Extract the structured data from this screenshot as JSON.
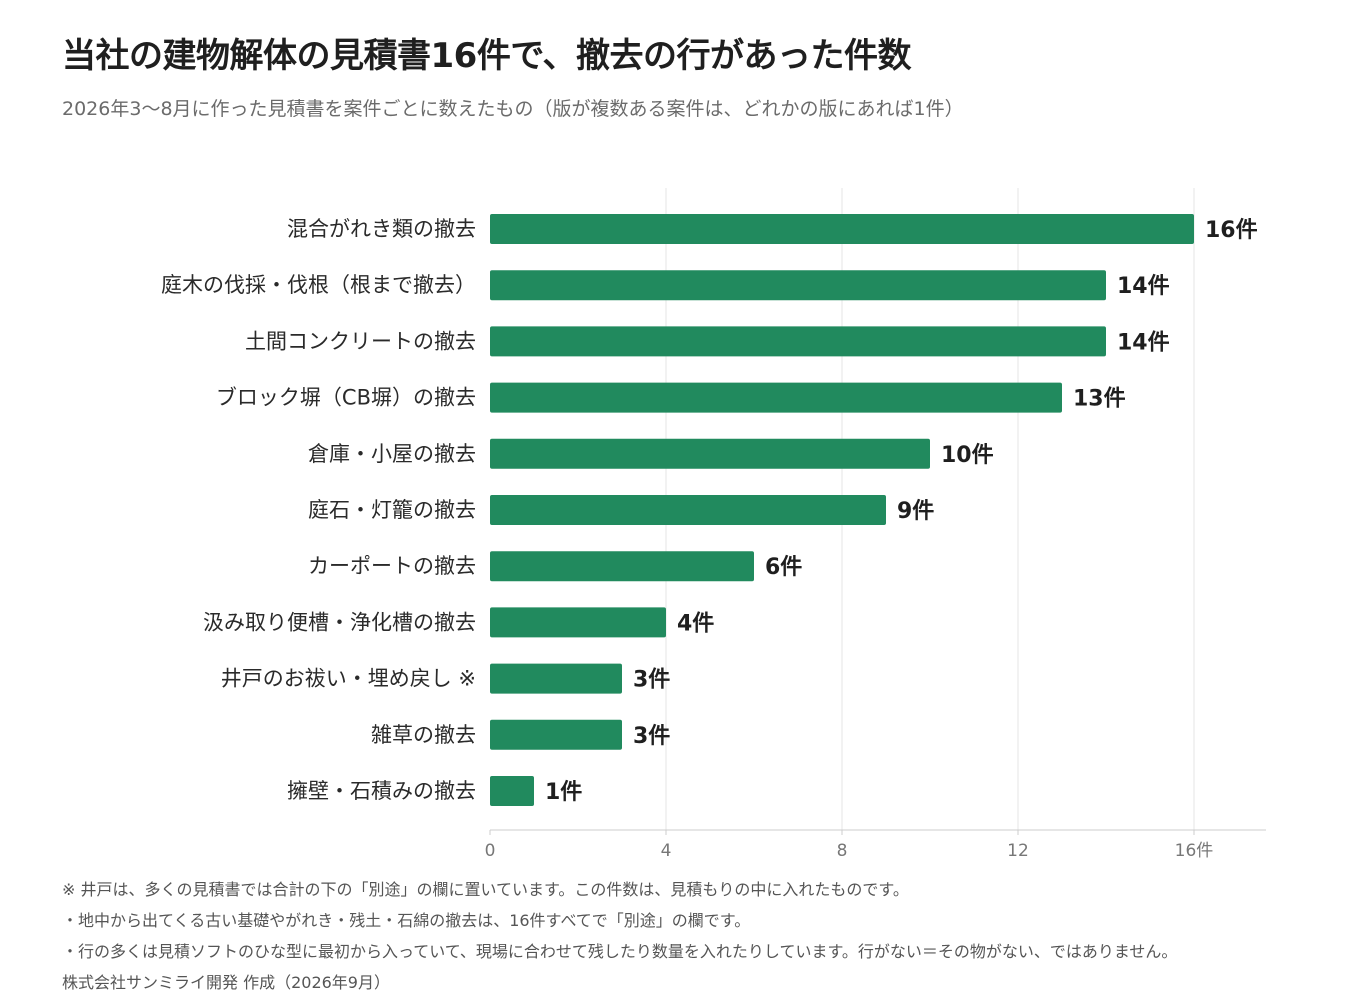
{
  "header": {
    "title": "当社の建物解体の見積書16件で、撤去の行があった件数",
    "subtitle": "2026年3〜8月に作った見積書を案件ごとに数えたもの（版が複数ある案件は、どれかの版にあれば1件）"
  },
  "chart_data": {
    "type": "bar",
    "orientation": "horizontal",
    "categories": [
      "混合がれき類の撤去",
      "庭木の伐採・伐根（根まで撤去）",
      "土間コンクリートの撤去",
      "ブロック塀（CB塀）の撤去",
      "倉庫・小屋の撤去",
      "庭石・灯籠の撤去",
      "カーポートの撤去",
      "汲み取り便槽・浄化槽の撤去",
      "井戸のお祓い・埋め戻し ※",
      "雑草の撤去",
      "擁壁・石積みの撤去"
    ],
    "values": [
      16,
      14,
      14,
      13,
      10,
      9,
      6,
      4,
      3,
      3,
      1
    ],
    "value_labels": [
      "16件",
      "14件",
      "14件",
      "13件",
      "10件",
      "9件",
      "6件",
      "4件",
      "3件",
      "3件",
      "1件"
    ],
    "xticks": [
      0,
      4,
      8,
      12,
      16
    ],
    "xtick_labels": [
      "0",
      "4",
      "8",
      "12",
      "16件"
    ],
    "xlim": [
      0,
      17.6
    ],
    "grid": true,
    "bar_color": "#218a5e"
  },
  "footer": {
    "notes": [
      "※ 井戸は、多くの見積書では合計の下の「別途」の欄に置いています。この件数は、見積もりの中に入れたものです。",
      "・地中から出てくる古い基礎やがれき・残土・石綿の撤去は、16件すべてで「別途」の欄です。",
      "・行の多くは見積ソフトのひな型に最初から入っていて、現場に合わせて残したり数量を入れたりしています。行がない＝その物がない、ではありません。"
    ],
    "credit": "株式会社サンミライ開発 作成（2026年9月）"
  }
}
